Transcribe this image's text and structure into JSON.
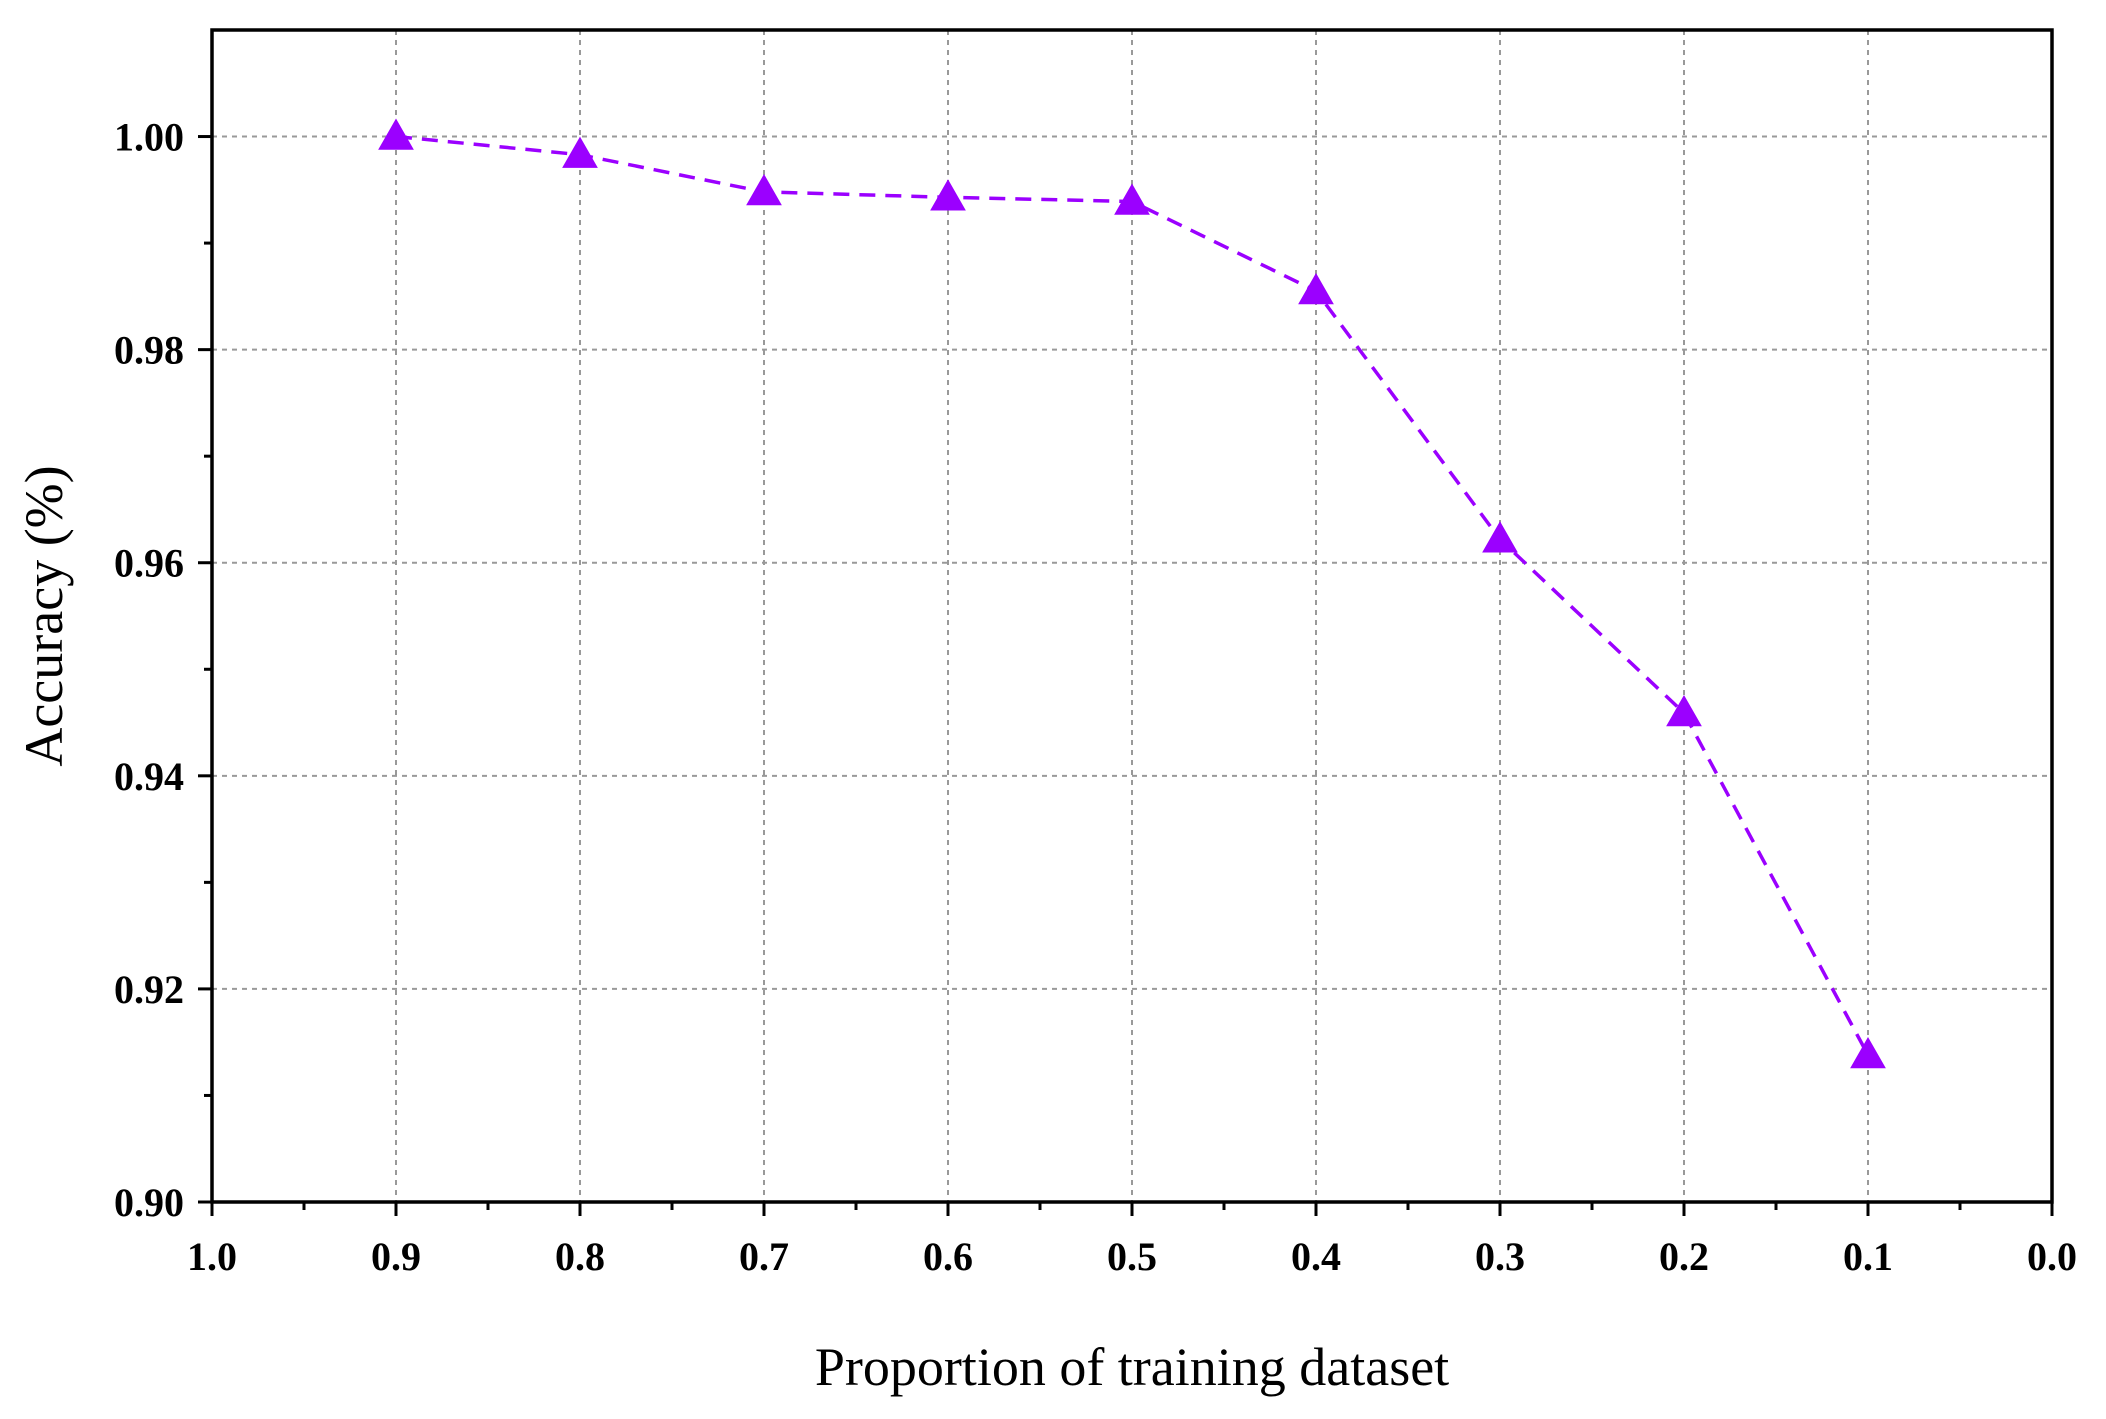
{
  "chart_data": {
    "type": "line",
    "title": "",
    "xlabel": "Proportion of training dataset",
    "ylabel": "Accuracy (%)",
    "xlim": [
      1.0,
      0.0
    ],
    "ylim": [
      0.9,
      1.01
    ],
    "x_reversed": true,
    "x_ticks": [
      "1.0",
      "0.9",
      "0.8",
      "0.7",
      "0.6",
      "0.5",
      "0.4",
      "0.3",
      "0.2",
      "0.1",
      "0.0"
    ],
    "y_ticks": [
      "0.90",
      "0.92",
      "0.94",
      "0.96",
      "0.98",
      "1.00"
    ],
    "grid": true,
    "legend": "none",
    "series": [
      {
        "x": [
          0.9,
          0.8,
          0.7,
          0.6,
          0.5,
          0.4,
          0.3,
          0.2,
          0.1
        ],
        "y": [
          1.0,
          0.9983,
          0.9948,
          0.9943,
          0.9939,
          0.9855,
          0.9622,
          0.9459,
          0.9138
        ],
        "color": "#9B00FF",
        "line_style": "dashed",
        "marker": "triangle"
      }
    ]
  }
}
